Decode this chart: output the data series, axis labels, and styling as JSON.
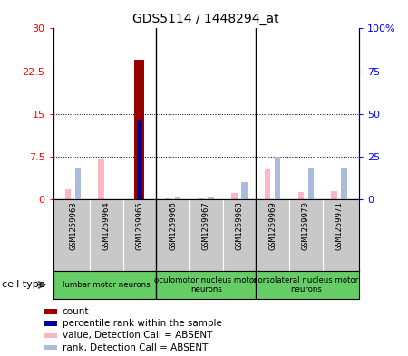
{
  "title": "GDS5114 / 1448294_at",
  "samples": [
    "GSM1259963",
    "GSM1259964",
    "GSM1259965",
    "GSM1259966",
    "GSM1259967",
    "GSM1259968",
    "GSM1259969",
    "GSM1259970",
    "GSM1259971"
  ],
  "count_values": [
    0,
    0,
    24.5,
    0,
    0,
    0,
    0,
    0,
    0
  ],
  "rank_values": [
    0,
    0,
    46.0,
    0,
    0,
    0,
    0,
    0,
    0
  ],
  "absent_value": [
    1.8,
    7.2,
    0,
    0.25,
    0.2,
    1.1,
    5.2,
    1.3,
    1.4
  ],
  "absent_rank": [
    18,
    0,
    0,
    1.5,
    1.5,
    10,
    25,
    18,
    18
  ],
  "ylim_left": [
    0,
    30
  ],
  "ylim_right": [
    0,
    100
  ],
  "yticks_left": [
    0,
    7.5,
    15,
    22.5,
    30
  ],
  "yticks_right": [
    0,
    25,
    50,
    75,
    100
  ],
  "group_spans": [
    [
      0,
      2,
      "lumbar motor neurons"
    ],
    [
      3,
      5,
      "oculomotor nucleus motor\nneurons"
    ],
    [
      6,
      8,
      "dorsolateral nucleus motor\nneurons"
    ]
  ],
  "group_dividers": [
    2.5,
    5.5
  ],
  "count_color": "#990000",
  "rank_color": "#000099",
  "absent_value_color": "#FFB6C1",
  "absent_rank_color": "#AABBDD",
  "gray_color": "#C8C8C8",
  "green_color": "#66CC66",
  "legend_items": [
    {
      "color": "#990000",
      "label": "count"
    },
    {
      "color": "#000099",
      "label": "percentile rank within the sample"
    },
    {
      "color": "#FFB6C1",
      "label": "value, Detection Call = ABSENT"
    },
    {
      "color": "#AABBDD",
      "label": "rank, Detection Call = ABSENT"
    }
  ]
}
